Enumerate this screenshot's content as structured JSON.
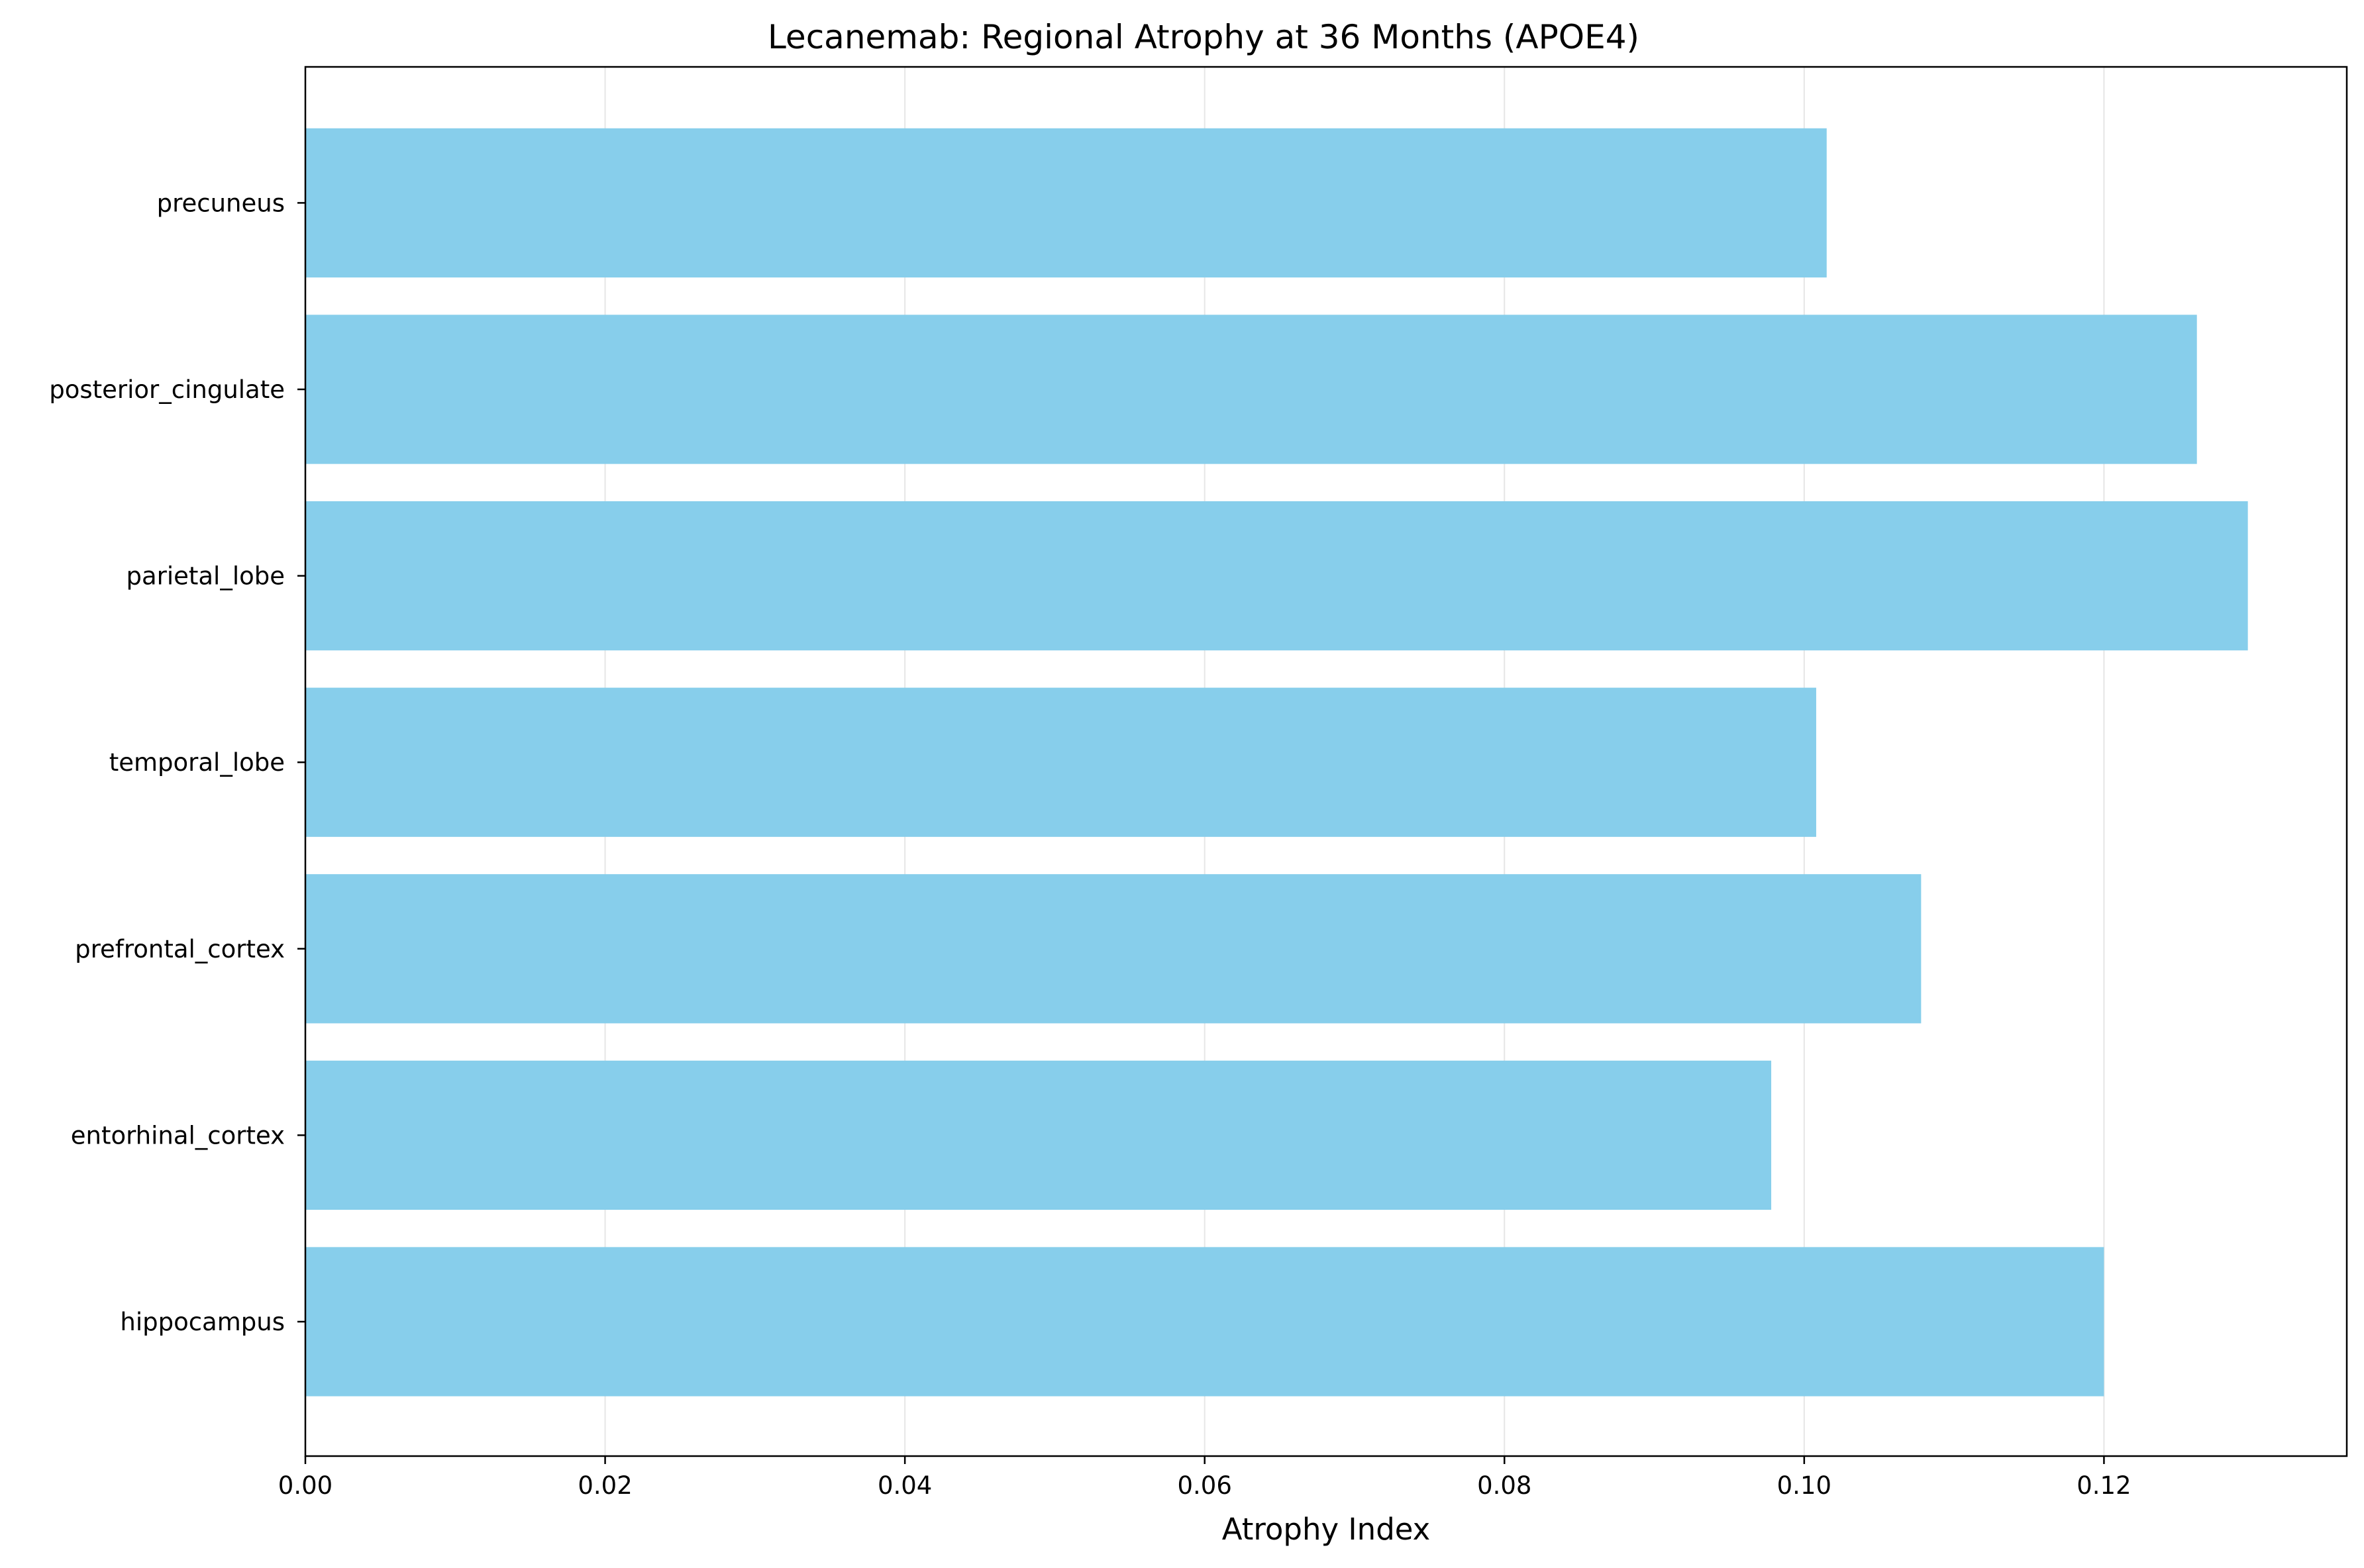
{
  "chart_data": {
    "type": "bar",
    "orientation": "horizontal",
    "title": "Lecanemab: Regional Atrophy at 36 Months (APOE4)",
    "xlabel": "Atrophy Index",
    "ylabel": "",
    "categories": [
      "hippocampus",
      "entorhinal_cortex",
      "prefrontal_cortex",
      "temporal_lobe",
      "parietal_lobe",
      "posterior_cingulate",
      "precuneus"
    ],
    "values": [
      0.12,
      0.0978,
      0.1078,
      0.1008,
      0.1296,
      0.1262,
      0.1015
    ],
    "xlim": [
      0.0,
      0.1362
    ],
    "xticks": [
      0.0,
      0.02,
      0.04,
      0.06,
      0.08,
      0.1,
      0.12
    ],
    "xtick_labels": [
      "0.00",
      "0.02",
      "0.04",
      "0.06",
      "0.08",
      "0.10",
      "0.12"
    ],
    "grid": "x",
    "legend": "none",
    "bar_color": "#87ceeb",
    "grid_color": "#e6e6e6"
  }
}
